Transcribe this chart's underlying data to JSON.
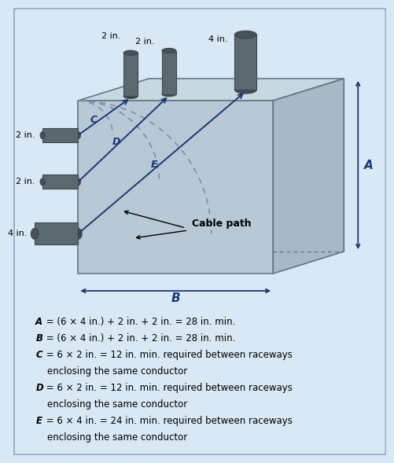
{
  "bg_color": "#d8e8f4",
  "box_front_color": "#b8c8d4",
  "box_top_color": "#c8d8e0",
  "box_right_color": "#a8b8c4",
  "box_edge_color": "#607888",
  "conduit_color": "#5a6870",
  "conduit_dark": "#404850",
  "conduit_top": "#485058",
  "arrow_color": "#1a3878",
  "dashed_color": "#7090a8",
  "dim_color": "#1a3878",
  "text_color": "#000000",
  "cable_arrow_color": "#000000",
  "text_lines_italic": [
    "A",
    "B",
    "C",
    "D",
    "E"
  ],
  "text_line1": " = (6 × 4 in.) + 2 in. + 2 in. = 28 in. min.",
  "text_line2": " = (6 × 4 in.) + 2 in. + 2 in. = 28 in. min.",
  "text_line3": " = 6 × 2 in. = 12 in. min. required between raceways",
  "text_line3b": "enclosing the same conductor",
  "text_line4": " = 6 × 2 in. = 12 in. min. required between raceways",
  "text_line4b": "enclosing the same conductor",
  "text_line5": " = 6 × 4 in. = 24 in. min. required between raceways",
  "text_line5b": "enclosing the same conductor",
  "side_labels": [
    "2 in.",
    "2 in.",
    "4 in."
  ],
  "top_labels": [
    "2 in.",
    "2 in.",
    "4 in."
  ],
  "dim_A_label": "A",
  "dim_B_label": "B",
  "cable_path_label": "Cable path"
}
